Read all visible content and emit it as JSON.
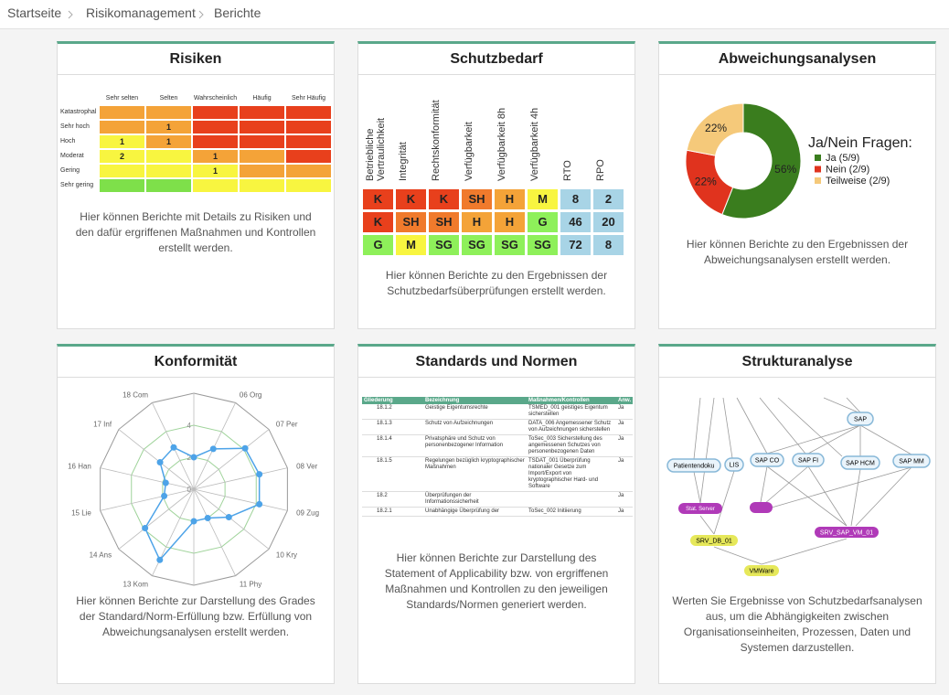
{
  "breadcrumb": [
    "Startseite",
    "Risikomanagement",
    "Berichte"
  ],
  "cards": [
    {
      "title": "Risiken",
      "description": "Hier können Berichte mit Details zu Risiken und den dafür ergriffenen Maßnahmen und Kontrollen erstellt werden."
    },
    {
      "title": "Schutzbedarf",
      "description": "Hier können Berichte zu den Ergebnissen der Schutzbedarfsüberprüfungen erstellt werden."
    },
    {
      "title": "Abweichungsanalysen",
      "description": "Hier können Berichte zu den Ergebnissen der Abweichungsanalysen erstellt werden."
    },
    {
      "title": "Konformität",
      "description": "Hier können Berichte zur Darstellung des Grades der Standard/Norm-Erfüllung bzw. Erfüllung von Abweichungsanalysen erstellt werden."
    },
    {
      "title": "Standards und Normen",
      "description": "Hier können Berichte zur Darstellung des Statement of Applicability bzw. von ergriffenen Maßnahmen und Kontrollen zu den jeweiligen Standards/Normen generiert werden."
    },
    {
      "title": "Strukturanalyse",
      "description": "Werten Sie Ergebnisse von Schutzbedarfsanalysen aus, um die Abhängigkeiten zwischen Organisationseinheiten, Prozessen, Daten und Systemen darzustellen."
    }
  ],
  "risk_matrix": {
    "columns": [
      "Sehr selten",
      "Selten",
      "Wahrscheinlich",
      "Häufig",
      "Sehr Häufig"
    ],
    "rows": [
      {
        "label": "Katastrophal",
        "cells": [
          {
            "color": "#f4a338"
          },
          {
            "color": "#f4a338"
          },
          {
            "color": "#e8401c"
          },
          {
            "color": "#e8401c"
          },
          {
            "color": "#e8401c"
          }
        ]
      },
      {
        "label": "Sehr hoch",
        "cells": [
          {
            "color": "#f4a338"
          },
          {
            "color": "#f4a338",
            "count": 1
          },
          {
            "color": "#e8401c"
          },
          {
            "color": "#e8401c"
          },
          {
            "color": "#e8401c"
          }
        ]
      },
      {
        "label": "Hoch",
        "cells": [
          {
            "color": "#f8f540",
            "count": 1
          },
          {
            "color": "#f4a338",
            "count": 1
          },
          {
            "color": "#e8401c"
          },
          {
            "color": "#e8401c"
          },
          {
            "color": "#e8401c"
          }
        ]
      },
      {
        "label": "Moderat",
        "cells": [
          {
            "color": "#f8f540",
            "count": 2
          },
          {
            "color": "#f8f540"
          },
          {
            "color": "#f4a338",
            "count": 1
          },
          {
            "color": "#f4a338"
          },
          {
            "color": "#e8401c"
          }
        ]
      },
      {
        "label": "Gering",
        "cells": [
          {
            "color": "#f8f540"
          },
          {
            "color": "#f8f540"
          },
          {
            "color": "#f8f540",
            "count": 1
          },
          {
            "color": "#f4a338"
          },
          {
            "color": "#f4a338"
          }
        ]
      },
      {
        "label": "Sehr gering",
        "cells": [
          {
            "color": "#7ee04a"
          },
          {
            "color": "#7ee04a"
          },
          {
            "color": "#f8f540"
          },
          {
            "color": "#f8f540"
          },
          {
            "color": "#f8f540"
          }
        ]
      }
    ]
  },
  "schutzbedarf_table": {
    "columns": [
      "Betriebliche Vertraulichkeit",
      "Integrität",
      "Rechtskonformität",
      "Verfügbarkeit",
      "Verfügbarkeit 8h",
      "Verfügbarkeit 4h",
      "RTO",
      "RPO"
    ],
    "rows": [
      [
        {
          "text": "K",
          "color": "#e8401c"
        },
        {
          "text": "K",
          "color": "#e8401c"
        },
        {
          "text": "K",
          "color": "#e8401c"
        },
        {
          "text": "SH",
          "color": "#f07a2c"
        },
        {
          "text": "H",
          "color": "#f4a338"
        },
        {
          "text": "M",
          "color": "#f8f540"
        },
        {
          "text": 8,
          "color": "#a8d4e6"
        },
        {
          "text": 2,
          "color": "#a8d4e6"
        }
      ],
      [
        {
          "text": "K",
          "color": "#e8401c"
        },
        {
          "text": "SH",
          "color": "#f07a2c"
        },
        {
          "text": "SH",
          "color": "#f07a2c"
        },
        {
          "text": "H",
          "color": "#f4a338"
        },
        {
          "text": "H",
          "color": "#f4a338"
        },
        {
          "text": "G",
          "color": "#8ef05a"
        },
        {
          "text": 46,
          "color": "#a8d4e6"
        },
        {
          "text": 20,
          "color": "#a8d4e6"
        }
      ],
      [
        {
          "text": "G",
          "color": "#8ef05a"
        },
        {
          "text": "M",
          "color": "#f8f540"
        },
        {
          "text": "SG",
          "color": "#8ef05a"
        },
        {
          "text": "SG",
          "color": "#8ef05a"
        },
        {
          "text": "SG",
          "color": "#8ef05a"
        },
        {
          "text": "SG",
          "color": "#8ef05a"
        },
        {
          "text": 72,
          "color": "#a8d4e6"
        },
        {
          "text": 8,
          "color": "#a8d4e6"
        }
      ]
    ]
  },
  "chart_data": [
    {
      "type": "pie",
      "title": "Ja/Nein Fragen:",
      "categories": [
        "Ja (5/9)",
        "Nein (2/9)",
        "Teilweise (2/9)"
      ],
      "values": [
        56,
        22,
        22
      ],
      "value_labels": [
        "56%",
        "22%",
        "22%"
      ],
      "colors": [
        "#3a7d1e",
        "#e0331e",
        "#f5c97a"
      ]
    },
    {
      "type": "radar",
      "categories": [
        null,
        "06 Org",
        "07 Per",
        "08 Ver",
        "09 Zug",
        "10 Kry",
        "11 Phy",
        null,
        "13 Kom",
        "14 Ans",
        "15 Lie",
        "16 Han",
        "17 Inf",
        "18 Com"
      ],
      "series": [
        {
          "color": "#4da3e8",
          "values": [
            2,
            2.8,
            4.1,
            4.2,
            4.2,
            2.8,
            2,
            2,
            4.9,
            3.9,
            1.9,
            1.8,
            2.7,
            2.9
          ]
        }
      ],
      "ylim": [
        0,
        6
      ],
      "yticks": [
        0,
        2,
        4
      ],
      "grid": true
    }
  ],
  "standards_table": {
    "columns": [
      "Gliederung",
      "Bezeichnung",
      "Maßnahmen/Kontrollen",
      "Anw."
    ],
    "rows": [
      [
        "18.1.2",
        "Geistige Eigentumsrechte",
        "TSMED_001 geistiges Eigentum sicherstellen",
        "Ja"
      ],
      [
        "18.1.3",
        "Schutz von Aufzeichnungen",
        "DATA_006 Angemessener Schutz von Aufzeichnungen sicherstellen",
        "Ja"
      ],
      [
        "18.1.4",
        "Privatsphäre und Schutz von personenbezogener Information",
        "ToSec_003 Sicherstellung des angemessenen Schutzes von personenbezogenen Daten",
        "Ja"
      ],
      [
        "18.1.5",
        "Regelungen bezüglich kryptographischer Maßnahmen",
        "TSDAT_001 Überprüfung nationaler Gesetze zum Import/Export von kryptographischer Hard- und Software",
        "Ja"
      ],
      [
        "18.2",
        "Überprüfungen der Informationssicherheit",
        null,
        "Ja"
      ],
      [
        "18.2.1",
        "Unabhängige Überprüfung der",
        "ToSec_002 Initiierung",
        "Ja"
      ]
    ]
  },
  "structure_graph": {
    "nodes": [
      "SAP",
      "Patientendoku",
      "LIS",
      "SAP CO",
      "SAP FI",
      "SAP HCM",
      "SAP MM",
      "Stat. Server",
      "SRV_DB_01",
      "SRV_SAP_VM_01",
      "VMWare"
    ]
  }
}
